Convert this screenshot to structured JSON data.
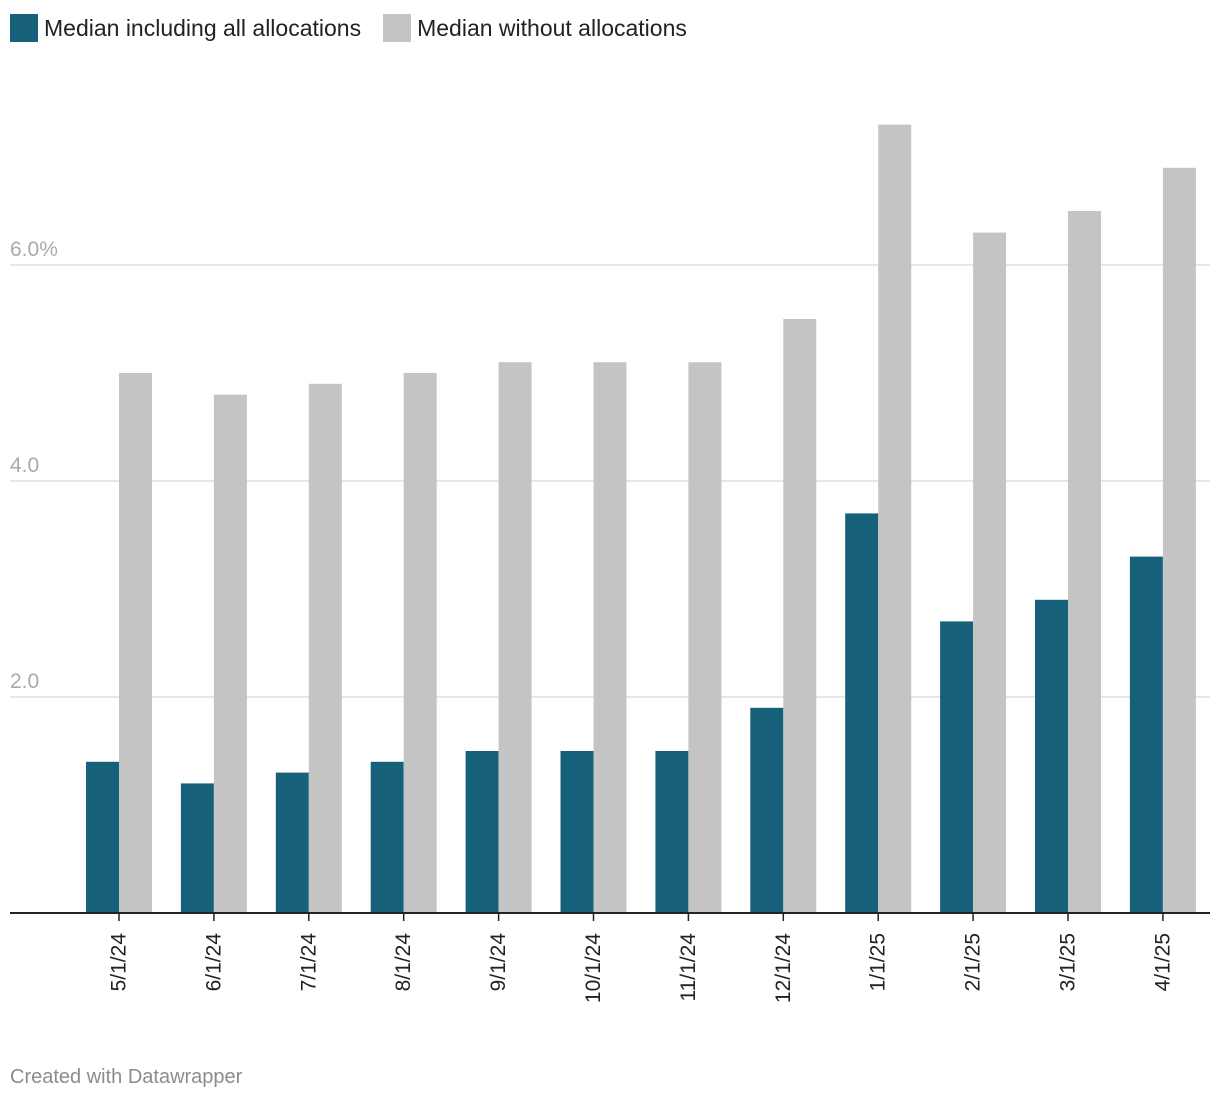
{
  "colors": {
    "series1": "#17607a",
    "series2": "#c4c4c4",
    "grid": "#dddddd",
    "axis": "#222222",
    "ytick": "#aaaaaa",
    "xtick": "#222222"
  },
  "chart_data": {
    "type": "bar",
    "title": "",
    "xlabel": "",
    "ylabel": "",
    "ylim": [
      0,
      8.4
    ],
    "yticks": [
      {
        "value": 2,
        "label": "2.0"
      },
      {
        "value": 4,
        "label": "4.0"
      },
      {
        "value": 6,
        "label": "6.0%"
      }
    ],
    "legend_position": "top-left",
    "grid": true,
    "categories": [
      "5/1/24",
      "6/1/24",
      "7/1/24",
      "8/1/24",
      "9/1/24",
      "10/1/24",
      "11/1/24",
      "12/1/24",
      "1/1/25",
      "2/1/25",
      "3/1/25",
      "4/1/25"
    ],
    "series": [
      {
        "name": "Median including all allocations",
        "values": [
          1.4,
          1.2,
          1.3,
          1.4,
          1.5,
          1.5,
          1.5,
          1.9,
          3.7,
          2.7,
          2.9,
          3.3
        ]
      },
      {
        "name": "Median without allocations",
        "values": [
          5.0,
          4.8,
          4.9,
          5.0,
          5.1,
          5.1,
          5.1,
          5.5,
          7.3,
          6.3,
          6.5,
          6.9
        ]
      }
    ]
  },
  "footer": "Created with Datawrapper"
}
